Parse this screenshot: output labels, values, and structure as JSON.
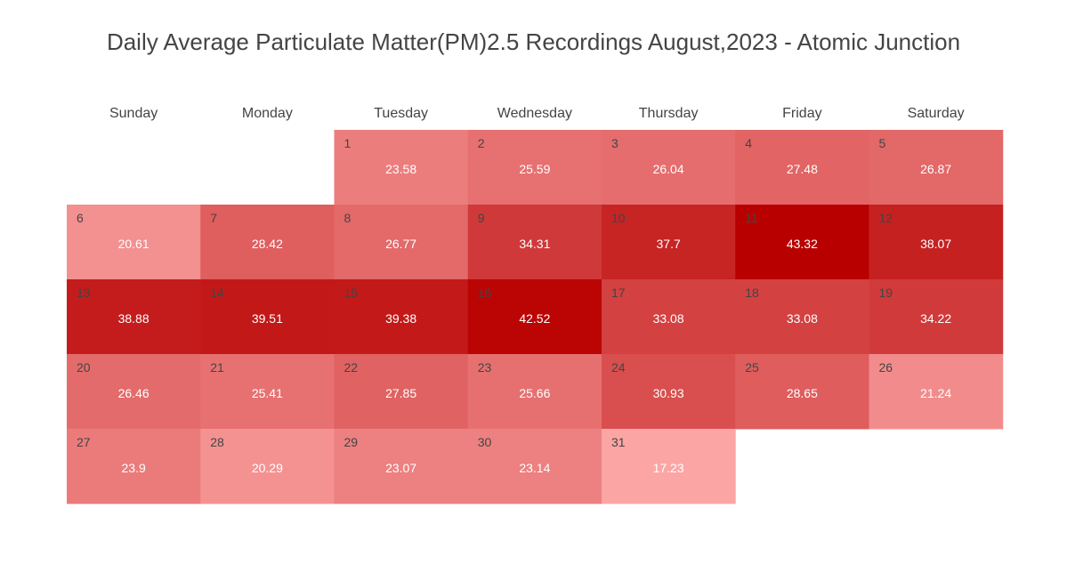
{
  "chart_data": {
    "type": "heatmap",
    "subtype": "calendar",
    "title": "Daily Average Particulate Matter(PM)2.5 Recordings August,2023 - Atomic Junction",
    "weekdays": [
      "Sunday",
      "Monday",
      "Tuesday",
      "Wednesday",
      "Thursday",
      "Friday",
      "Saturday"
    ],
    "first_weekday_index": 2,
    "days": [
      {
        "day": 1,
        "value": 23.58
      },
      {
        "day": 2,
        "value": 25.59
      },
      {
        "day": 3,
        "value": 26.04
      },
      {
        "day": 4,
        "value": 27.48
      },
      {
        "day": 5,
        "value": 26.87
      },
      {
        "day": 6,
        "value": 20.61
      },
      {
        "day": 7,
        "value": 28.42
      },
      {
        "day": 8,
        "value": 26.77
      },
      {
        "day": 9,
        "value": 34.31
      },
      {
        "day": 10,
        "value": 37.7
      },
      {
        "day": 11,
        "value": 43.32
      },
      {
        "day": 12,
        "value": 38.07
      },
      {
        "day": 13,
        "value": 38.88
      },
      {
        "day": 14,
        "value": 39.51
      },
      {
        "day": 15,
        "value": 39.38
      },
      {
        "day": 16,
        "value": 42.52
      },
      {
        "day": 17,
        "value": 33.08
      },
      {
        "day": 18,
        "value": 33.08
      },
      {
        "day": 19,
        "value": 34.22
      },
      {
        "day": 20,
        "value": 26.46
      },
      {
        "day": 21,
        "value": 25.41
      },
      {
        "day": 22,
        "value": 27.85
      },
      {
        "day": 23,
        "value": 25.66
      },
      {
        "day": 24,
        "value": 30.93
      },
      {
        "day": 25,
        "value": 28.65
      },
      {
        "day": 26,
        "value": 21.24
      },
      {
        "day": 27,
        "value": 23.9
      },
      {
        "day": 28,
        "value": 20.29
      },
      {
        "day": 29,
        "value": 23.07
      },
      {
        "day": 30,
        "value": 23.14
      },
      {
        "day": 31,
        "value": 17.23
      }
    ],
    "color_scale": {
      "low": "#fca5a5",
      "high": "#b90000"
    },
    "legend": "none"
  }
}
